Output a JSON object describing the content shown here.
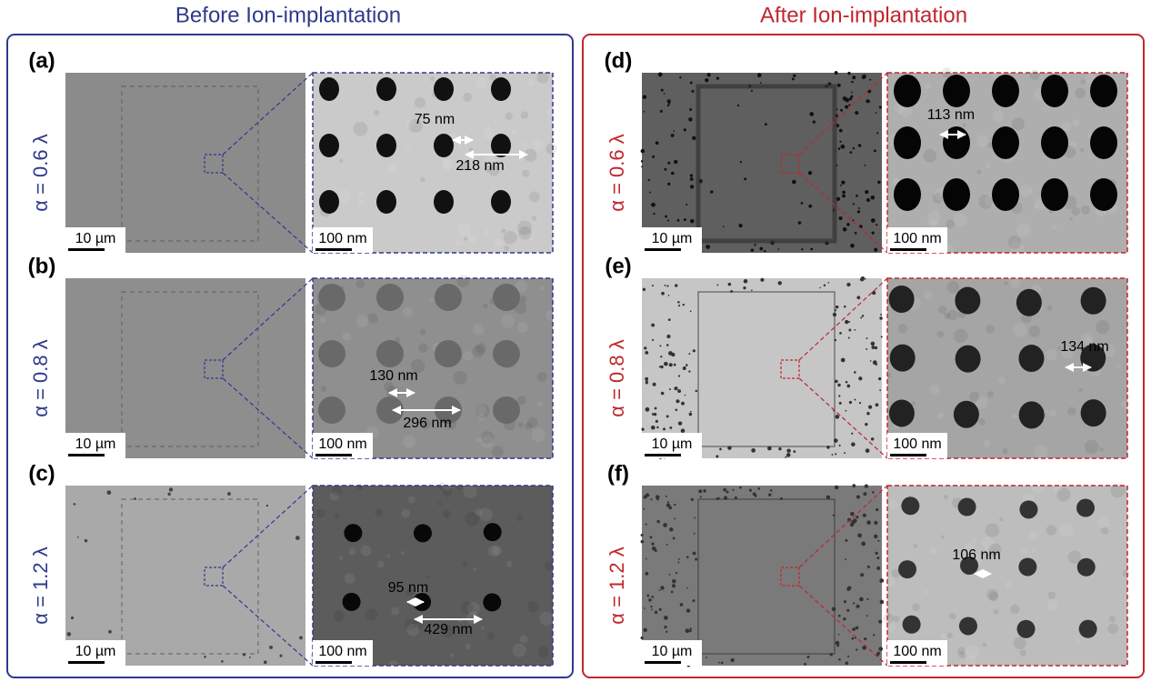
{
  "columns": [
    {
      "title": "Before Ion-implantation",
      "rows": [
        {
          "label": "(a)",
          "alpha": "α = 0.6 λ",
          "overview_scale": "10 µm",
          "zoom_scale": "100 nm",
          "measurements": [
            "75 nm",
            "218 nm"
          ]
        },
        {
          "label": "(b)",
          "alpha": "α = 0.8 λ",
          "overview_scale": "10 µm",
          "zoom_scale": "100 nm",
          "measurements": [
            "130 nm",
            "296 nm"
          ]
        },
        {
          "label": "(c)",
          "alpha": "α = 1.2 λ",
          "overview_scale": "10 µm",
          "zoom_scale": "100 nm",
          "measurements": [
            "95 nm",
            "429 nm"
          ]
        }
      ]
    },
    {
      "title": "After Ion-implantation",
      "rows": [
        {
          "label": "(d)",
          "alpha": "α = 0.6 λ",
          "overview_scale": "10 µm",
          "zoom_scale": "100 nm",
          "measurements": [
            "113 nm"
          ]
        },
        {
          "label": "(e)",
          "alpha": "α = 0.8 λ",
          "overview_scale": "10 µm",
          "zoom_scale": "100 nm",
          "measurements": [
            "134 nm"
          ]
        },
        {
          "label": "(f)",
          "alpha": "α = 1.2 λ",
          "overview_scale": "10 µm",
          "zoom_scale": "100 nm",
          "measurements": [
            "106 nm"
          ]
        }
      ]
    }
  ]
}
